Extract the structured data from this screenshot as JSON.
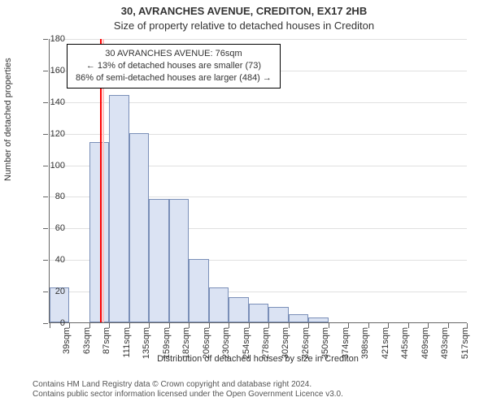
{
  "title_line1": "30, AVRANCHES AVENUE, CREDITON, EX17 2HB",
  "title_line2": "Size of property relative to detached houses in Crediton",
  "title_fontsize": 13,
  "y_axis": {
    "title": "Number of detached properties",
    "min": 0,
    "max": 180,
    "tick_step": 20,
    "ticks": [
      0,
      20,
      40,
      60,
      80,
      100,
      120,
      140,
      160,
      180
    ],
    "label_fontsize": 11
  },
  "x_axis": {
    "title": "Distribution of detached houses by size in Crediton",
    "labels": [
      "39sqm",
      "63sqm",
      "87sqm",
      "111sqm",
      "135sqm",
      "159sqm",
      "182sqm",
      "206sqm",
      "230sqm",
      "254sqm",
      "278sqm",
      "302sqm",
      "326sqm",
      "350sqm",
      "374sqm",
      "398sqm",
      "421sqm",
      "445sqm",
      "469sqm",
      "493sqm",
      "517sqm"
    ],
    "label_fontsize": 11
  },
  "bars": {
    "type": "histogram",
    "count": 21,
    "values": [
      22,
      0,
      114,
      144,
      120,
      78,
      78,
      40,
      22,
      16,
      12,
      10,
      5,
      3,
      0,
      0,
      0,
      0,
      0,
      0,
      0
    ],
    "fill_color": "#dbe3f3",
    "border_color": "#7a8fb8"
  },
  "marker": {
    "bar_index": 2,
    "offset_within_bar": 0.54,
    "line1_color": "#ff0000",
    "line2_color": "#ffc0c0",
    "line_width": 2
  },
  "annotation": {
    "line1": "30 AVRANCHES AVENUE: 76sqm",
    "line2": "← 13% of detached houses are smaller (73)",
    "line3": "86% of semi-detached houses are larger (484) →",
    "fontsize": 11
  },
  "footer": {
    "line1": "Contains HM Land Registry data © Crown copyright and database right 2024.",
    "line2": "Contains public sector information licensed under the Open Government Licence v3.0.",
    "fontsize": 10,
    "color": "#555555"
  },
  "colors": {
    "background": "#ffffff",
    "grid": "#e0e0e0",
    "axis": "#666666",
    "text": "#333333"
  }
}
